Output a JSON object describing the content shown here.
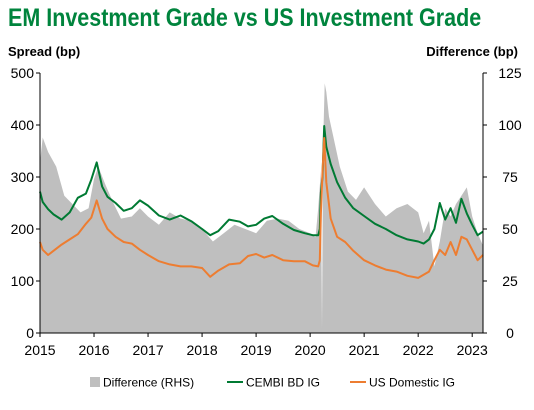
{
  "chart_data": {
    "type": "line",
    "title": "EM Investment Grade vs US Investment Grade",
    "ylabel": "Spread (bp)",
    "y2label": "Difference (bp)",
    "ylim": [
      0,
      500
    ],
    "y2lim": [
      0,
      125
    ],
    "y_ticks": [
      "0",
      "100",
      "200",
      "300",
      "400",
      "500"
    ],
    "y2_ticks": [
      "0",
      "25",
      "50",
      "75",
      "100",
      "125"
    ],
    "x_ticks": [
      "2015",
      "2016",
      "2017",
      "2018",
      "2019",
      "2020",
      "2021",
      "2022",
      "2023"
    ],
    "xlim": [
      2015.0,
      2023.2
    ],
    "legend_position": "bottom",
    "grid": false,
    "series": [
      {
        "name": "Difference (RHS)",
        "kind": "area",
        "axis": "right",
        "color": "#bfbfbf",
        "x": [
          2015.0,
          2015.05,
          2015.15,
          2015.3,
          2015.45,
          2015.6,
          2015.75,
          2015.9,
          2016.0,
          2016.08,
          2016.2,
          2016.35,
          2016.5,
          2016.7,
          2016.85,
          2017.0,
          2017.2,
          2017.4,
          2017.6,
          2017.8,
          2018.0,
          2018.2,
          2018.4,
          2018.6,
          2018.8,
          2019.0,
          2019.2,
          2019.4,
          2019.6,
          2019.8,
          2020.0,
          2020.1,
          2020.15,
          2020.2,
          2020.22,
          2020.24,
          2020.27,
          2020.3,
          2020.35,
          2020.45,
          2020.55,
          2020.7,
          2020.85,
          2021.0,
          2021.2,
          2021.4,
          2021.6,
          2021.8,
          2022.0,
          2022.1,
          2022.2,
          2022.3,
          2022.4,
          2022.5,
          2022.6,
          2022.7,
          2022.8,
          2022.9,
          2023.0,
          2023.1,
          2023.2
        ],
        "values": [
          82,
          94,
          87,
          80,
          66,
          62,
          58,
          60,
          74,
          80,
          72,
          63,
          55,
          56,
          60,
          56,
          52,
          58,
          55,
          54,
          50,
          44,
          48,
          52,
          50,
          48,
          54,
          55,
          54,
          50,
          48,
          46,
          60,
          78,
          2,
          90,
          120,
          116,
          104,
          92,
          80,
          68,
          64,
          70,
          62,
          56,
          60,
          62,
          58,
          48,
          54,
          32,
          44,
          60,
          56,
          62,
          66,
          70,
          56,
          48,
          42
        ]
      },
      {
        "name": "CEMBI BD IG",
        "kind": "line",
        "axis": "left",
        "color": "#007a33",
        "x": [
          2015.0,
          2015.05,
          2015.15,
          2015.25,
          2015.4,
          2015.55,
          2015.7,
          2015.85,
          2015.95,
          2016.05,
          2016.15,
          2016.25,
          2016.4,
          2016.55,
          2016.7,
          2016.85,
          2017.0,
          2017.2,
          2017.4,
          2017.6,
          2017.8,
          2018.0,
          2018.15,
          2018.3,
          2018.5,
          2018.7,
          2018.85,
          2019.0,
          2019.15,
          2019.3,
          2019.5,
          2019.7,
          2019.9,
          2020.05,
          2020.15,
          2020.18,
          2020.2,
          2020.23,
          2020.26,
          2020.3,
          2020.38,
          2020.5,
          2020.65,
          2020.8,
          2021.0,
          2021.2,
          2021.4,
          2021.6,
          2021.8,
          2022.0,
          2022.1,
          2022.2,
          2022.3,
          2022.4,
          2022.5,
          2022.6,
          2022.7,
          2022.8,
          2022.9,
          2023.0,
          2023.1,
          2023.2
        ],
        "values": [
          272,
          252,
          238,
          228,
          218,
          232,
          260,
          268,
          295,
          328,
          282,
          262,
          250,
          235,
          240,
          255,
          245,
          226,
          218,
          226,
          215,
          200,
          188,
          196,
          218,
          214,
          205,
          208,
          220,
          225,
          210,
          198,
          192,
          188,
          188,
          200,
          270,
          300,
          398,
          358,
          325,
          290,
          260,
          240,
          225,
          210,
          200,
          188,
          180,
          176,
          172,
          180,
          200,
          250,
          218,
          240,
          212,
          258,
          230,
          208,
          188,
          195
        ]
      },
      {
        "name": "US Domestic IG",
        "kind": "line",
        "axis": "left",
        "color": "#ed7d31",
        "x": [
          2015.0,
          2015.05,
          2015.15,
          2015.25,
          2015.4,
          2015.55,
          2015.7,
          2015.85,
          2015.95,
          2016.05,
          2016.15,
          2016.25,
          2016.4,
          2016.55,
          2016.7,
          2016.85,
          2017.0,
          2017.2,
          2017.4,
          2017.6,
          2017.8,
          2018.0,
          2018.15,
          2018.3,
          2018.5,
          2018.7,
          2018.85,
          2019.0,
          2019.15,
          2019.3,
          2019.5,
          2019.7,
          2019.9,
          2020.05,
          2020.15,
          2020.18,
          2020.2,
          2020.23,
          2020.26,
          2020.3,
          2020.38,
          2020.5,
          2020.65,
          2020.8,
          2021.0,
          2021.2,
          2021.4,
          2021.6,
          2021.8,
          2022.0,
          2022.1,
          2022.2,
          2022.3,
          2022.4,
          2022.5,
          2022.6,
          2022.7,
          2022.8,
          2022.9,
          2023.0,
          2023.1,
          2023.2
        ],
        "values": [
          175,
          160,
          150,
          158,
          170,
          180,
          190,
          210,
          222,
          255,
          220,
          200,
          185,
          175,
          172,
          160,
          150,
          138,
          132,
          128,
          128,
          125,
          108,
          120,
          132,
          134,
          148,
          152,
          145,
          150,
          140,
          138,
          138,
          130,
          128,
          140,
          230,
          310,
          375,
          290,
          220,
          185,
          175,
          158,
          140,
          130,
          122,
          118,
          110,
          106,
          112,
          118,
          140,
          160,
          150,
          175,
          150,
          185,
          180,
          160,
          140,
          150
        ]
      }
    ]
  }
}
